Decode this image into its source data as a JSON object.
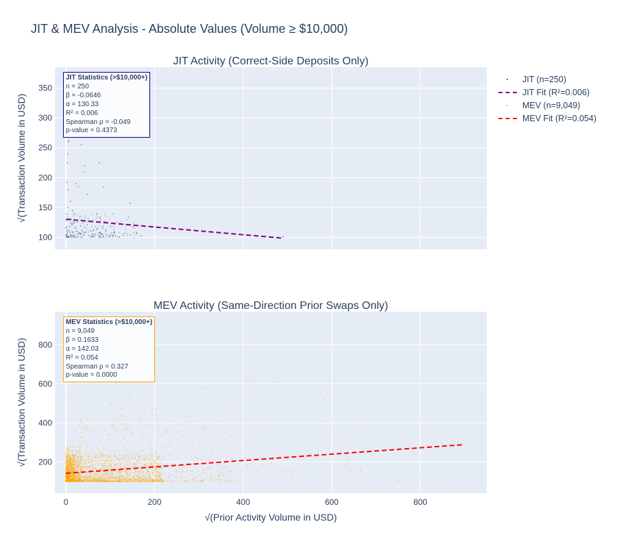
{
  "title": "JIT & MEV Analysis - Absolute Values (Volume ≥ $10,000)",
  "legend": [
    {
      "label": "JIT (n=250)",
      "kind": "marker",
      "color": "#2a3f5f"
    },
    {
      "label": "JIT Fit (R²=0.006)",
      "kind": "dash",
      "color": "#800080"
    },
    {
      "label": "MEV (n=9,049)",
      "kind": "marker",
      "color": "#ffa500"
    },
    {
      "label": "MEV Fit (R²=0.054)",
      "kind": "dash",
      "color": "#ff0000"
    }
  ],
  "chart_data": [
    {
      "type": "scatter",
      "title": "JIT Activity (Correct-Side Deposits Only)",
      "xlabel": "",
      "ylabel": "√(Transaction Volume in USD)",
      "xlim": [
        -25,
        950
      ],
      "ylim": [
        80,
        385
      ],
      "xticks": [
        0,
        200,
        400,
        600,
        800
      ],
      "xtick_labels_shown": false,
      "yticks": [
        100,
        150,
        200,
        250,
        300,
        350
      ],
      "grid": true,
      "series": [
        {
          "name": "JIT (n=250)",
          "marker_color": "#2a3f5f",
          "n": 250,
          "sample_points": [
            [
              2,
              105
            ],
            [
              4,
              112
            ],
            [
              6,
              101
            ],
            [
              8,
              118
            ],
            [
              10,
              104
            ],
            [
              12,
              130
            ],
            [
              14,
              122
            ],
            [
              16,
              108
            ],
            [
              18,
              140
            ],
            [
              20,
              103
            ],
            [
              22,
              115
            ],
            [
              24,
              110
            ],
            [
              26,
              126
            ],
            [
              28,
              101
            ],
            [
              30,
              107
            ],
            [
              33,
              119
            ],
            [
              36,
              112
            ],
            [
              40,
              104
            ],
            [
              44,
              109
            ],
            [
              48,
              121
            ],
            [
              52,
              103
            ],
            [
              56,
              111
            ],
            [
              60,
              106
            ],
            [
              65,
              102
            ],
            [
              70,
              114
            ],
            [
              75,
              108
            ],
            [
              80,
              105
            ],
            [
              90,
              112
            ],
            [
              100,
              103
            ],
            [
              110,
              109
            ],
            [
              120,
              101
            ],
            [
              130,
              106
            ],
            [
              145,
              104
            ],
            [
              160,
              107
            ],
            [
              170,
              103
            ],
            [
              2,
              192
            ],
            [
              3,
              225
            ],
            [
              4,
              240
            ],
            [
              5,
              260
            ],
            [
              6,
              262
            ],
            [
              3,
              300
            ],
            [
              4,
              320
            ],
            [
              5,
              180
            ],
            [
              22,
              190
            ],
            [
              28,
              185
            ],
            [
              30,
              270
            ],
            [
              35,
              255
            ],
            [
              40,
              210
            ],
            [
              42,
              220
            ],
            [
              48,
              172
            ],
            [
              75,
              225
            ],
            [
              85,
              184
            ],
            [
              145,
              157
            ],
            [
              5,
              150
            ],
            [
              10,
              160
            ],
            [
              15,
              145
            ],
            [
              490,
              101
            ]
          ]
        },
        {
          "name": "JIT Fit (R²=0.006)",
          "type": "line",
          "line_color": "#800080",
          "dash": "dash",
          "x": [
            0,
            487
          ],
          "y": [
            130.33,
            98.87
          ]
        }
      ],
      "stats": {
        "title": "JIT Statistics (>$10,000+)",
        "lines": [
          "n = 250",
          "β = -0.0646",
          "α = 130.33",
          "R² = 0.006",
          "Spearman ρ = -0.049",
          "p-value = 0.4373"
        ],
        "border_color": "#000080"
      }
    },
    {
      "type": "scatter",
      "title": "MEV Activity (Same-Direction Prior Swaps Only)",
      "xlabel": "√(Prior Activity Volume in USD)",
      "ylabel": "√(Transaction Volume in USD)",
      "xlim": [
        -25,
        950
      ],
      "ylim": [
        40,
        970
      ],
      "xticks": [
        0,
        200,
        400,
        600,
        800
      ],
      "yticks": [
        200,
        400,
        600,
        800
      ],
      "grid": true,
      "series": [
        {
          "name": "MEV (n=9,049)",
          "marker_color": "#ffa500",
          "n": 9049,
          "density_regions": [
            {
              "x": [
                0,
                220
              ],
              "y": [
                100,
                240
              ],
              "weight": 0.55
            },
            {
              "x": [
                0,
                30
              ],
              "y": [
                100,
                280
              ],
              "weight": 0.15
            },
            {
              "x": [
                30,
                380
              ],
              "y": [
                100,
                420
              ],
              "weight": 0.2
            },
            {
              "x": [
                100,
                700
              ],
              "y": [
                150,
                560
              ],
              "weight": 0.07
            },
            {
              "x": [
                0,
                900
              ],
              "y": [
                100,
                700
              ],
              "weight": 0.03
            }
          ]
        },
        {
          "name": "MEV Fit (R²=0.054)",
          "type": "line",
          "line_color": "#ff0000",
          "dash": "dash",
          "x": [
            0,
            895
          ],
          "y": [
            142.03,
            288.18
          ]
        }
      ],
      "stats": {
        "title": "MEV Statistics (>$10,000+)",
        "lines": [
          "n = 9,049",
          "β = 0.1633",
          "α = 142.03",
          "R² = 0.054",
          "Spearman ρ = 0.327",
          "p-value = 0.0000"
        ],
        "border_color": "#ffa500"
      }
    }
  ]
}
